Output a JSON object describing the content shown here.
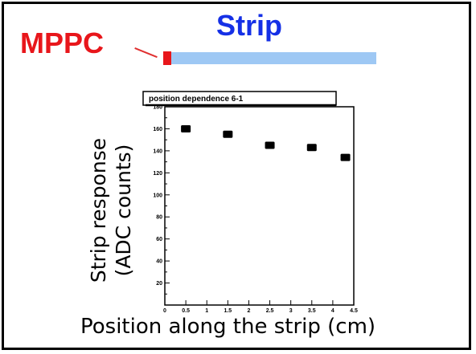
{
  "diagram": {
    "mppc_label": "MPPC",
    "strip_label": "Strip",
    "colors": {
      "mppc": "#e8161b",
      "strip_label": "#1530e6",
      "strip_bar": "#9ec8f4",
      "leader": "#e03030"
    }
  },
  "chart_data": {
    "type": "scatter",
    "title": "position dependence 6-1",
    "ylabel_lines": [
      "Strip response",
      "(ADC counts)"
    ],
    "xlabel": "Position along the strip (cm)",
    "xlim": [
      0,
      4.5
    ],
    "ylim": [
      0,
      180
    ],
    "x_ticks": [
      "0",
      "0.5",
      "1",
      "1.5",
      "2",
      "2.5",
      "3",
      "3.5",
      "4",
      "4.5"
    ],
    "y_ticks": [
      "20",
      "40",
      "60",
      "80",
      "100",
      "120",
      "140",
      "160",
      "180"
    ],
    "series": [
      {
        "x": [
          0.5,
          1.5,
          2.5,
          3.5,
          4.3
        ],
        "y": [
          160,
          155,
          145,
          143,
          134
        ]
      }
    ]
  }
}
